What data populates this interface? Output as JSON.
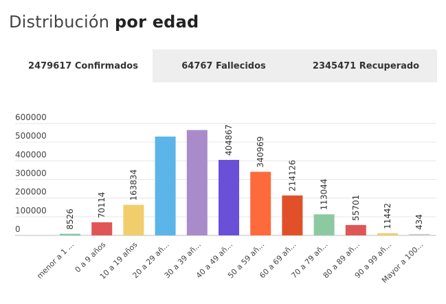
{
  "header": {
    "title_prefix": "Distribución",
    "title_strong": "por edad"
  },
  "tabs": [
    {
      "label": "2479617 Confirmados",
      "active": true
    },
    {
      "label": "64767 Fallecidos",
      "active": false
    },
    {
      "label": "2345471 Recuperado",
      "active": false
    }
  ],
  "chart_data": {
    "type": "bar",
    "categories": [
      "menor a 1 ...",
      "0 a 9 años",
      "10 a 19 años",
      "20 a 29 añ...",
      "30 a 39 añ...",
      "40 a 49 añ...",
      "50 a 59 añ...",
      "60 a 69 añ...",
      "70 a 79 añ...",
      "80 a 89 añ...",
      "90 a 99 añ...",
      "Mayor a 100..."
    ],
    "values": [
      8526,
      70114,
      163834,
      530000,
      565000,
      404867,
      340969,
      214126,
      113044,
      55701,
      11442,
      434
    ],
    "data_labels": [
      "8526",
      "70114",
      "163834",
      "",
      "",
      "404867",
      "340969",
      "214126",
      "113044",
      "55701",
      "11442",
      "434"
    ],
    "colors": [
      "#7fc8a9",
      "#e05656",
      "#f2cd6b",
      "#5bb5e8",
      "#a98bc9",
      "#6a4fd8",
      "#ff6a3d",
      "#e0512a",
      "#8cc9a0",
      "#e05656",
      "#f2cd6b",
      "#cccccc"
    ],
    "y_ticks": [
      "0",
      "100000",
      "200000",
      "300000",
      "400000",
      "500000",
      "600000"
    ],
    "ylim": [
      0,
      600000
    ],
    "grid": true
  }
}
